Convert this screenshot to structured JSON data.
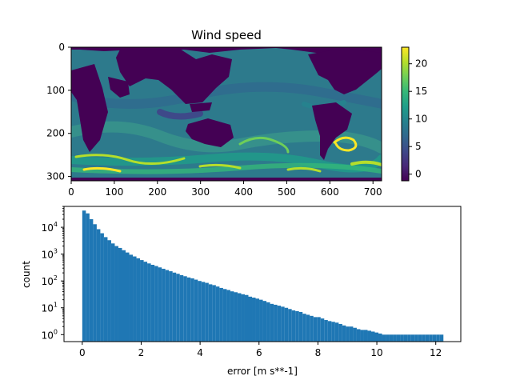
{
  "colors": {
    "bar": "#1f77b4",
    "viridis": [
      "#440154",
      "#482878",
      "#3e4989",
      "#31688e",
      "#26828e",
      "#1f9e89",
      "#35b779",
      "#6ece58",
      "#b5de2b",
      "#fde725"
    ]
  },
  "chart_data": [
    {
      "type": "heatmap",
      "title": "Wind speed",
      "xlabel": "",
      "ylabel": "",
      "xlim": [
        0,
        720
      ],
      "ylim": [
        0,
        310
      ],
      "y_inverted": true,
      "xticks": [
        "0",
        "100",
        "200",
        "300",
        "400",
        "500",
        "600",
        "700"
      ],
      "yticks": [
        "0",
        "100",
        "200",
        "300"
      ],
      "colorbar": {
        "range": [
          -1.2,
          23
        ],
        "ticks": [
          "0",
          "5",
          "10",
          "15",
          "20"
        ],
        "colormap": "viridis"
      },
      "grid": false
    },
    {
      "type": "bar",
      "title": "",
      "xlabel": "error [m s**-1]",
      "ylabel": "count",
      "y_scale": "log",
      "xlim": [
        -0.62,
        12.85
      ],
      "ylim": [
        0.55,
        60000
      ],
      "xticks": [
        "0",
        "2",
        "4",
        "6",
        "8",
        "10",
        "12"
      ],
      "yticks": [
        "10^0",
        "10^1",
        "10^2",
        "10^3",
        "10^4"
      ],
      "bin_width": 0.1226,
      "bin_start": 0,
      "values": [
        42000,
        33000,
        20000,
        13000,
        8500,
        6000,
        4300,
        3300,
        2500,
        2000,
        1700,
        1400,
        1150,
        950,
        820,
        700,
        600,
        520,
        450,
        400,
        360,
        320,
        285,
        255,
        230,
        205,
        185,
        165,
        150,
        135,
        125,
        112,
        100,
        92,
        85,
        75,
        70,
        62,
        55,
        50,
        46,
        41,
        38,
        35,
        32,
        30,
        26,
        24,
        22,
        20,
        18,
        16,
        14,
        13,
        12,
        11,
        10,
        9,
        8,
        7.5,
        7,
        6,
        5.5,
        5,
        4.5,
        4.5,
        4,
        3.5,
        3.2,
        3,
        2.8,
        2.5,
        2.2,
        2,
        2,
        1.8,
        1.6,
        1.5,
        1.5,
        1.4,
        1.3,
        1.2,
        1.1,
        1,
        1,
        1,
        1,
        1,
        1,
        1,
        1,
        1,
        1,
        1,
        1,
        1,
        1,
        1,
        1,
        1
      ]
    }
  ]
}
